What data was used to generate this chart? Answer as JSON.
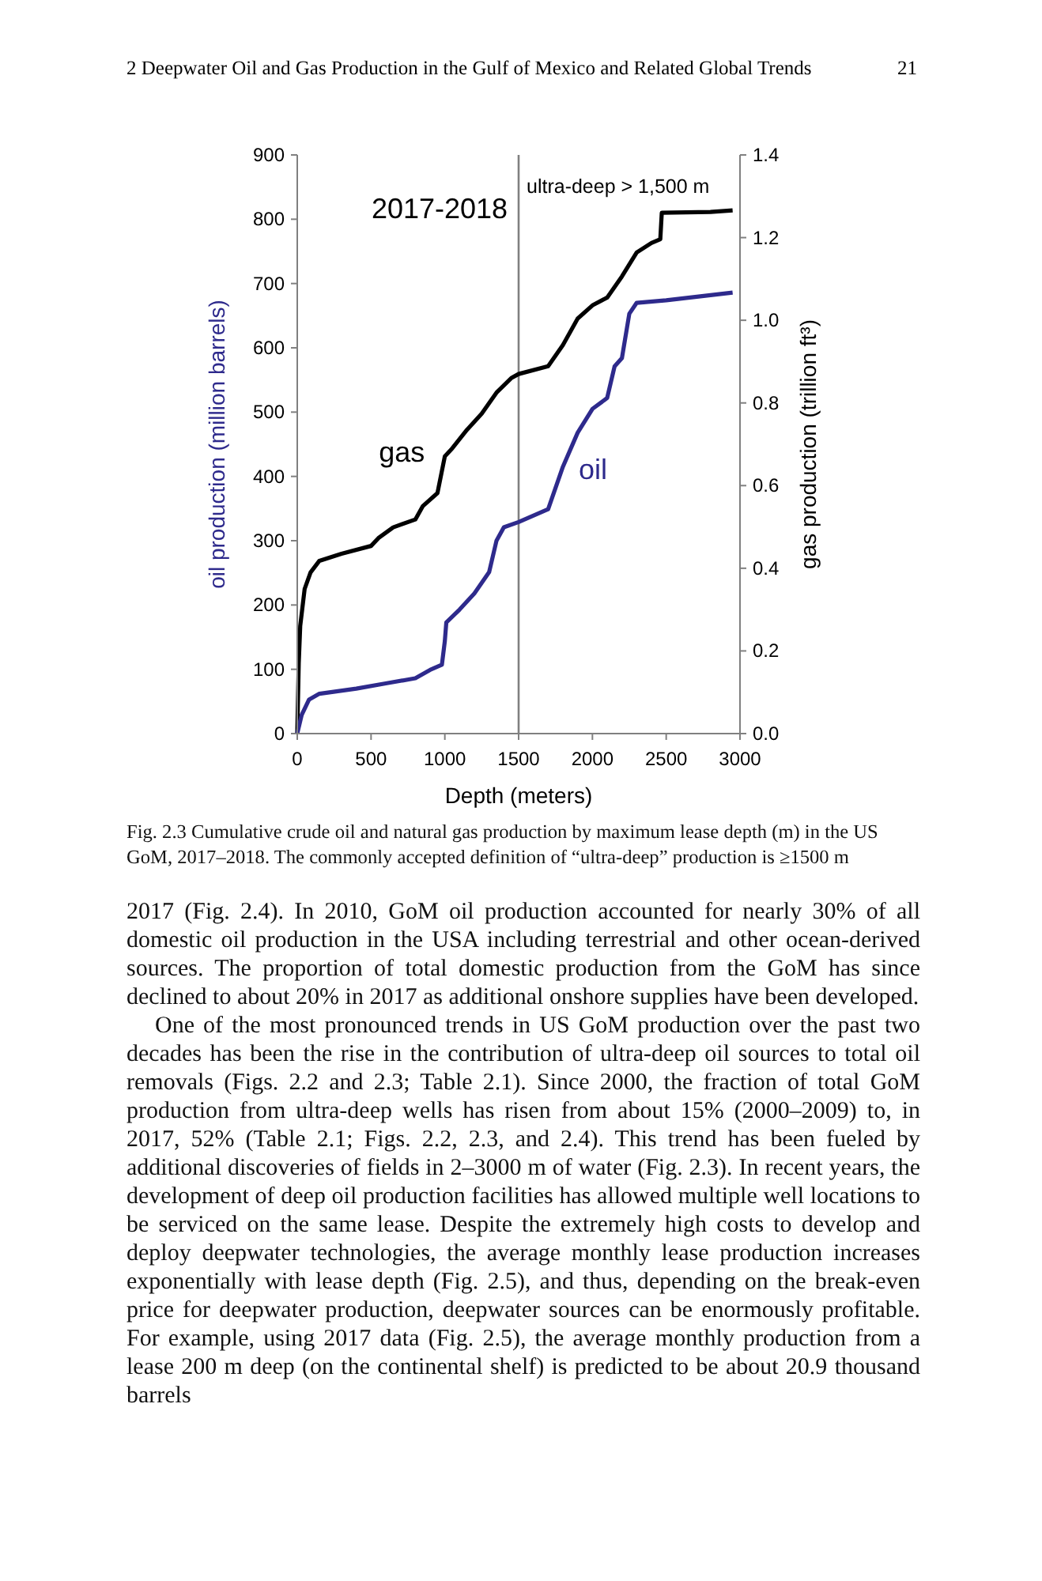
{
  "chart_data": {
    "type": "line",
    "xlabel": "Depth (meters)",
    "ylabel": "oil production (million barrels)",
    "y2label": "gas production (trillion ft³)",
    "xlim": [
      0,
      3000
    ],
    "xticks": [
      0,
      500,
      1000,
      1500,
      2000,
      2500,
      3000
    ],
    "ylim": [
      0,
      900
    ],
    "yticks": [
      0,
      100,
      200,
      300,
      400,
      500,
      600,
      700,
      800,
      900
    ],
    "y2lim": [
      0,
      1.4
    ],
    "y2ticks": [
      {
        "value": 0,
        "label": "0.0"
      },
      0.2,
      0.4,
      0.6,
      0.8,
      {
        "value": 1,
        "label": "1.0"
      },
      1.2,
      1.4
    ],
    "grid": false,
    "series": [
      {
        "name": "gas",
        "color": "#000000",
        "axis": "y2",
        "x": [
          0,
          10,
          20,
          50,
          90,
          150,
          300,
          500,
          550,
          650,
          800,
          850,
          950,
          1000,
          1050,
          1150,
          1250,
          1350,
          1450,
          1500,
          1700,
          1800,
          1900,
          2000,
          2100,
          2200,
          2300,
          2400,
          2460,
          2470,
          2800,
          2950
        ],
        "values": [
          0,
          0.17,
          0.26,
          0.35,
          0.39,
          0.418,
          0.435,
          0.454,
          0.473,
          0.499,
          0.518,
          0.55,
          0.582,
          0.671,
          0.69,
          0.735,
          0.774,
          0.825,
          0.86,
          0.87,
          0.889,
          0.94,
          1.004,
          1.036,
          1.055,
          1.106,
          1.164,
          1.187,
          1.196,
          1.26,
          1.262,
          1.266
        ]
      },
      {
        "name": "oil",
        "color": "#2e2a8c",
        "x": [
          0,
          30,
          80,
          150,
          400,
          600,
          800,
          900,
          980,
          1000,
          1010,
          1100,
          1200,
          1300,
          1350,
          1400,
          1500,
          1700,
          1800,
          1900,
          2000,
          2100,
          2150,
          2200,
          2250,
          2300,
          2500,
          2950
        ],
        "values": [
          0,
          29,
          53,
          62,
          70,
          78,
          86,
          99,
          107,
          144,
          173,
          193,
          218,
          251,
          300,
          321,
          329,
          349,
          415,
          468,
          505,
          522,
          571,
          584,
          653,
          670,
          674,
          686
        ]
      }
    ],
    "ref_lines": [
      {
        "axis": "x",
        "value": 1500,
        "label": "ultra-deep > 1,500 m",
        "color": "#808080"
      }
    ],
    "annotations": [
      "2017-2018",
      "2 Deepwater Oil and Gas Production in the Gulf of Mexico and Related Global Trends",
      "21",
      "Fig. 2.3 Cumulative crude oil and natural gas production by maximum lease depth (m) in the US GoM, 2017–2018. The commonly accepted definition of “ultra-deep” production is ≥1500 m",
      "2017 (Fig. 2.4). In 2010, GoM oil production accounted for nearly 30% of all domestic oil production in the USA including terrestrial and other ocean-derived sources. The proportion of total domestic production from the GoM has since declined to about 20% in 2017 as additional onshore supplies have been developed.",
      "One of the most pronounced trends in US GoM production over the past two decades has been the rise in the contribution of ultra-deep oil sources to total oil removals (Figs. 2.2 and 2.3; Table 2.1). Since 2000, the fraction of total GoM production from ultra-deep wells has risen from about 15% (2000–2009) to, in 2017, 52% (Table 2.1; Figs. 2.2, 2.3, and 2.4). This trend has been fueled by additional discoveries of fields in 2–3000 m of water (Fig. 2.3). In recent years, the development of deep oil production facilities has allowed multiple well locations to be serviced on the same lease. Despite the extremely high costs to develop and deploy deepwater technologies, the average monthly lease production increases exponentially with lease depth (Fig. 2.5), and thus, depending on the break-even price for deepwater production, deepwater sources can be enormously profitable. For example, using 2017 data (Fig. 2.5), the average monthly production from a lease 200 m deep (on the continental shelf) is predicted to be about 20.9 thousand barrels"
    ]
  }
}
